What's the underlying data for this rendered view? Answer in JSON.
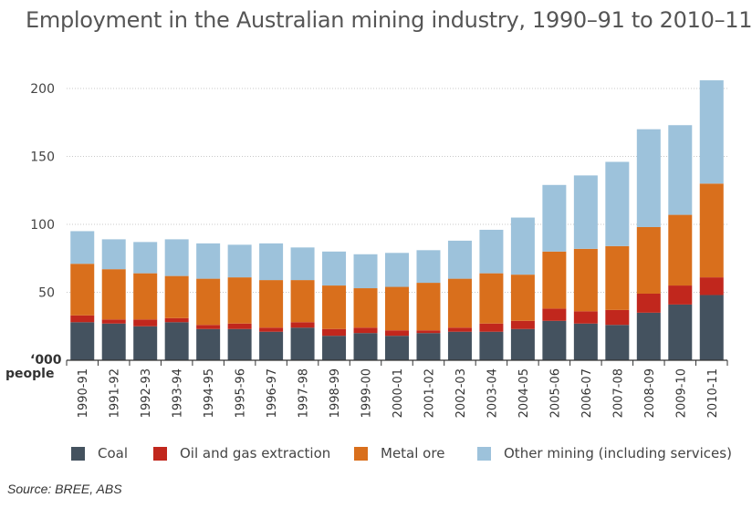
{
  "chart_data": {
    "type": "bar",
    "stacked": true,
    "title": "Employment in the Australian mining industry, 1990–91 to 2010–11",
    "ylabel_line1": "‘000",
    "ylabel_line2": "people",
    "xlabel": "",
    "ylim": [
      0,
      200
    ],
    "yticks": [
      50,
      100,
      150,
      200
    ],
    "grid": true,
    "legend_position": "bottom",
    "categories": [
      "1990-91",
      "1991-92",
      "1992-93",
      "1993-94",
      "1994-95",
      "1995-96",
      "1996-97",
      "1997-98",
      "1998-99",
      "1999-00",
      "2000-01",
      "2001-02",
      "2002-03",
      "2003-04",
      "2004-05",
      "2005-06",
      "2006-07",
      "2007-08",
      "2008-09",
      "2009-10",
      "2010-11"
    ],
    "series": [
      {
        "name": "Coal",
        "color": "#44525f",
        "values": [
          28,
          27,
          25,
          28,
          23,
          23,
          21,
          24,
          18,
          20,
          18,
          20,
          21,
          21,
          23,
          29,
          27,
          26,
          35,
          41,
          48
        ]
      },
      {
        "name": "Oil and gas extraction",
        "color": "#c1271d",
        "values": [
          5,
          3,
          5,
          3,
          3,
          4,
          3,
          4,
          5,
          4,
          4,
          2,
          3,
          6,
          6,
          9,
          9,
          11,
          14,
          14,
          13
        ]
      },
      {
        "name": "Metal ore",
        "color": "#d96f1c",
        "values": [
          38,
          37,
          34,
          31,
          34,
          34,
          35,
          31,
          32,
          29,
          32,
          35,
          36,
          37,
          34,
          42,
          46,
          47,
          49,
          52,
          69
        ]
      },
      {
        "name": "Other mining (including services)",
        "color": "#9dc2db",
        "values": [
          24,
          22,
          23,
          27,
          26,
          24,
          27,
          24,
          25,
          25,
          25,
          24,
          28,
          32,
          42,
          49,
          54,
          62,
          72,
          66,
          76
        ]
      }
    ]
  },
  "source_text": "Source:  BREE, ABS"
}
